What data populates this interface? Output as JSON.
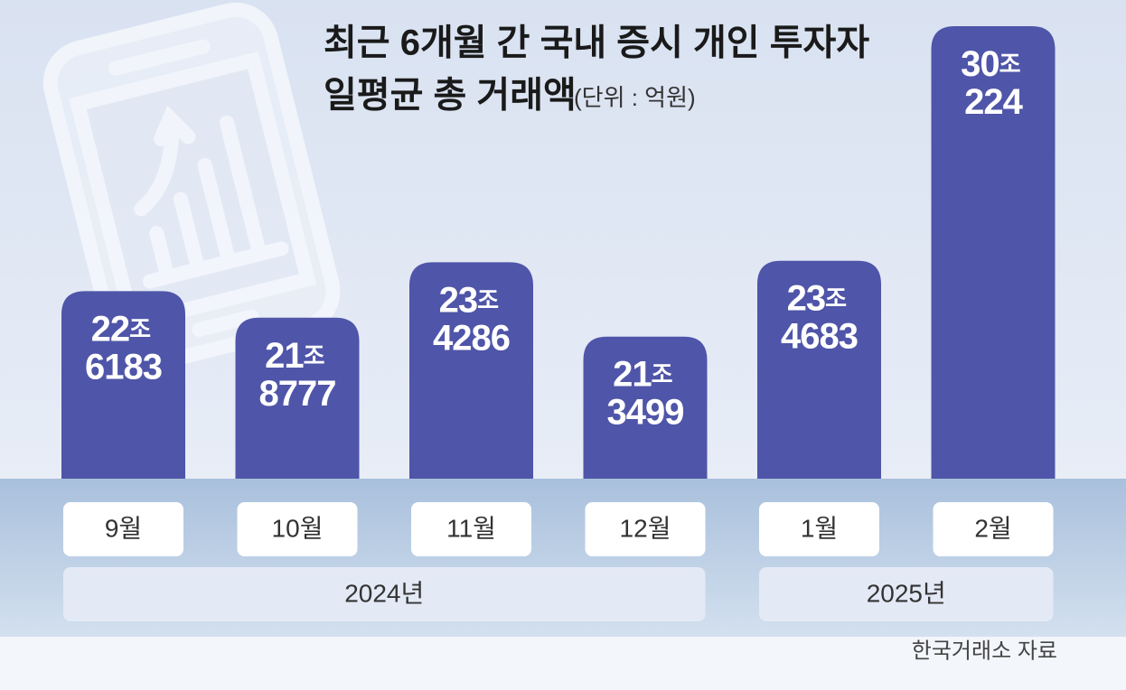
{
  "chart_data": {
    "type": "bar",
    "title": "최근 6개월 간 국내 증시 개인 투자자",
    "title_line2": "일평균 총 거래액",
    "subtitle": "(단위 : 억원)",
    "categories": [
      "9월",
      "10월",
      "11월",
      "12월",
      "1월",
      "2월"
    ],
    "values": [
      226183,
      218777,
      234286,
      213499,
      234683,
      300224
    ],
    "value_labels": [
      "22조 6183",
      "21조 8777",
      "23조 4286",
      "21조 3499",
      "23조 4683",
      "30조 224"
    ],
    "color": "#4f55a8",
    "ylim": [
      173800,
      302000
    ],
    "groups": [
      {
        "label": "2024년",
        "span": 4
      },
      {
        "label": "2025년",
        "span": 2
      }
    ],
    "source": "한국거래소 자료"
  }
}
